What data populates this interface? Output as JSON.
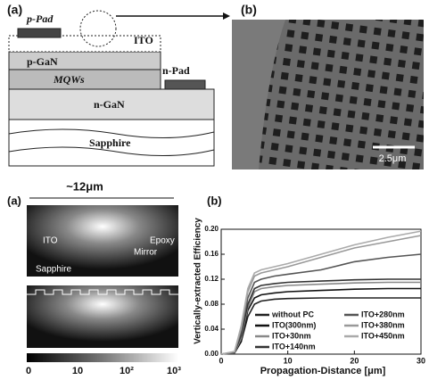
{
  "top_left": {
    "label": "(a)",
    "p_pad": "p-Pad",
    "ito": "ITO",
    "p_gan": "p-GaN",
    "mqws": "MQWs",
    "n_pad": "n-Pad",
    "n_gan": "n-GaN",
    "sapphire": "Sapphire"
  },
  "top_right": {
    "label": "(b)",
    "scale": "2.5μm"
  },
  "bottom_left": {
    "label": "(a)",
    "width": "~12μm",
    "ito": "ITO",
    "epoxy": "Epoxy",
    "mirror": "Mirror",
    "sapphire": "Sapphire",
    "colorbar": [
      "0",
      "10",
      "10²",
      "10³"
    ]
  },
  "chart_data": {
    "type": "line",
    "label": "(b)",
    "x_label": "Propagation-Distance [μm]",
    "y_label": "Vertically-extracted Efficiency",
    "x": [
      0,
      2,
      3,
      4,
      5,
      6,
      8,
      10,
      15,
      20,
      25,
      30
    ],
    "series": [
      {
        "name": "without PC",
        "color": "#222222",
        "values": [
          0,
          0.002,
          0.02,
          0.06,
          0.08,
          0.085,
          0.088,
          0.089,
          0.09,
          0.09,
          0.09,
          0.09
        ]
      },
      {
        "name": "ITO(300nm)",
        "color": "#111111",
        "values": [
          0,
          0.002,
          0.02,
          0.07,
          0.09,
          0.095,
          0.098,
          0.1,
          0.102,
          0.104,
          0.105,
          0.105
        ]
      },
      {
        "name": "ITO+30nm",
        "color": "#888888",
        "values": [
          0,
          0.002,
          0.025,
          0.075,
          0.1,
          0.105,
          0.108,
          0.11,
          0.112,
          0.114,
          0.115,
          0.115
        ]
      },
      {
        "name": "ITO+140nm",
        "color": "#333333",
        "values": [
          0,
          0.003,
          0.03,
          0.08,
          0.105,
          0.11,
          0.113,
          0.115,
          0.117,
          0.119,
          0.12,
          0.12
        ]
      },
      {
        "name": "ITO+280nm",
        "color": "#555555",
        "values": [
          0,
          0.003,
          0.035,
          0.09,
          0.115,
          0.12,
          0.125,
          0.128,
          0.135,
          0.148,
          0.155,
          0.16
        ]
      },
      {
        "name": "ITO+380nm",
        "color": "#999999",
        "values": [
          0,
          0.004,
          0.04,
          0.1,
          0.125,
          0.13,
          0.135,
          0.14,
          0.155,
          0.17,
          0.18,
          0.19
        ]
      },
      {
        "name": "ITO+450nm",
        "color": "#aaaaaa",
        "values": [
          0,
          0.004,
          0.045,
          0.105,
          0.13,
          0.135,
          0.14,
          0.145,
          0.16,
          0.175,
          0.187,
          0.197
        ]
      }
    ],
    "xlim": [
      0,
      30
    ],
    "xticks": [
      0,
      10,
      20,
      30
    ],
    "ylim": [
      0,
      0.2
    ],
    "yticks": [
      {
        "value": 0,
        "label": "0.00"
      },
      {
        "value": 0.04,
        "label": "0.04"
      },
      {
        "value": 0.08,
        "label": "0.08"
      },
      {
        "value": 0.12,
        "label": "0.12"
      },
      {
        "value": 0.16,
        "label": "0.16"
      },
      {
        "value": 0.2,
        "label": "0.20"
      }
    ],
    "grid": false,
    "legend": "lower right"
  }
}
